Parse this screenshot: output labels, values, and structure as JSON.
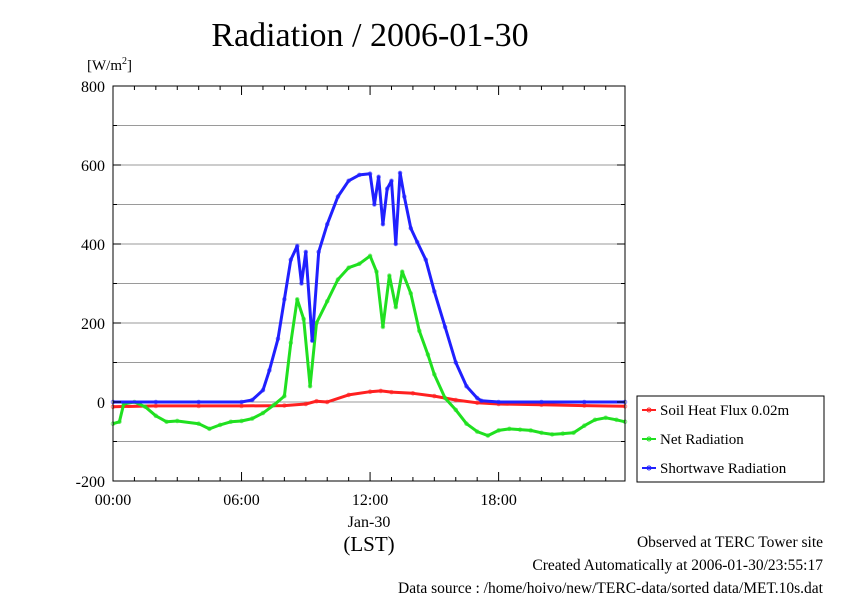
{
  "chart_data": {
    "type": "line",
    "title": "Radiation / 2006-01-30",
    "ylabel_prefix": "[W/m",
    "ylabel_sup": "2",
    "ylabel_suffix": "]",
    "xlabel_date": "Jan-30",
    "xlabel_unit": "(LST)",
    "xlim": [
      0,
      23.9
    ],
    "ylim": [
      -200,
      800
    ],
    "yticks": [
      -200,
      0,
      200,
      400,
      600,
      800
    ],
    "ytick_labels": [
      "-200",
      "0",
      "200",
      "400",
      "600",
      "800"
    ],
    "xticks": [
      0,
      6,
      12,
      18
    ],
    "xtick_labels": [
      "00:00",
      "06:00",
      "12:00",
      "18:00"
    ],
    "grid": true,
    "legend_position": "right",
    "series": [
      {
        "name": "Soil Heat Flux 0.02m",
        "color": "#ff2020",
        "x": [
          0,
          2,
          4,
          6,
          8,
          9,
          9.5,
          10,
          11,
          12,
          12.5,
          13,
          14,
          15,
          16,
          17,
          18,
          20,
          22,
          23.9
        ],
        "y": [
          -12,
          -10,
          -10,
          -10,
          -9,
          -5,
          2,
          0,
          18,
          26,
          28,
          25,
          22,
          15,
          5,
          -2,
          -5,
          -7,
          -9,
          -11
        ]
      },
      {
        "name": "Net Radiation",
        "color": "#20e020",
        "x": [
          0,
          0.3,
          0.5,
          1,
          1.5,
          2,
          2.5,
          3,
          4,
          4.5,
          5,
          5.5,
          6,
          6.5,
          7,
          7.5,
          8,
          8.3,
          8.6,
          8.9,
          9.2,
          9.5,
          10,
          10.5,
          11,
          11.5,
          12,
          12.3,
          12.6,
          12.9,
          13.2,
          13.5,
          13.9,
          14.3,
          14.7,
          15,
          15.5,
          16,
          16.5,
          17,
          17.5,
          18,
          18.5,
          19,
          19.5,
          20,
          20.5,
          21,
          21.5,
          22,
          22.5,
          23,
          23.5,
          23.9
        ],
        "y": [
          -55,
          -50,
          -5,
          0,
          -12,
          -35,
          -50,
          -48,
          -55,
          -68,
          -58,
          -50,
          -48,
          -42,
          -28,
          -8,
          15,
          150,
          260,
          210,
          40,
          200,
          255,
          310,
          340,
          350,
          370,
          330,
          190,
          320,
          240,
          330,
          275,
          180,
          120,
          70,
          10,
          -20,
          -55,
          -75,
          -85,
          -72,
          -68,
          -70,
          -72,
          -78,
          -82,
          -80,
          -78,
          -60,
          -45,
          -40,
          -45,
          -50
        ]
      },
      {
        "name": "Shortwave Radiation",
        "color": "#2020ff",
        "x": [
          0,
          2,
          4,
          6,
          6.5,
          7,
          7.3,
          7.7,
          8,
          8.3,
          8.6,
          8.8,
          9,
          9.3,
          9.6,
          10,
          10.5,
          11,
          11.5,
          12,
          12.2,
          12.4,
          12.6,
          12.8,
          13,
          13.2,
          13.4,
          13.6,
          13.9,
          14.2,
          14.6,
          15,
          15.5,
          16,
          16.5,
          17,
          17.2,
          18,
          20,
          22,
          23.9
        ],
        "y": [
          0,
          0,
          0,
          0,
          5,
          30,
          80,
          160,
          260,
          360,
          395,
          300,
          380,
          155,
          380,
          450,
          520,
          560,
          575,
          578,
          500,
          570,
          450,
          540,
          560,
          400,
          580,
          520,
          440,
          405,
          360,
          280,
          190,
          100,
          40,
          10,
          3,
          0,
          0,
          0,
          0
        ]
      }
    ]
  },
  "footer": {
    "site": "Observed at TERC Tower site",
    "created": "Created Automatically at 2006-01-30/23:55:17",
    "source": "Data source : /home/hoivo/new/TERC-data/sorted  data/MET.10s.dat"
  }
}
